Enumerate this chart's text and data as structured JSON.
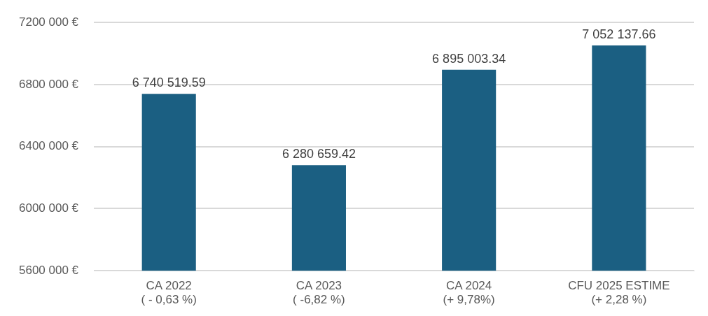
{
  "chart_data": {
    "type": "bar",
    "categories": [
      "CA 2022\n( - 0,63 %)",
      "CA 2023\n( -6,82 %)",
      "CA 2024\n(+ 9,78%)",
      "CFU 2025 ESTIME\n(+ 2,28 %)"
    ],
    "values": [
      6740519.59,
      6280659.42,
      6895003.34,
      7052137.66
    ],
    "value_labels": [
      "6 740 519.59",
      "6 280 659.42",
      "6 895 003.34",
      "7 052 137.66"
    ],
    "color": "#1b5f82",
    "ylim": [
      5600000,
      7200000
    ],
    "yticks": [
      {
        "value": 5600000,
        "label": "5600 000 €"
      },
      {
        "value": 6000000,
        "label": "6000 000 €"
      },
      {
        "value": 6400000,
        "label": "6400 000 €"
      },
      {
        "value": 6800000,
        "label": "6800 000 €"
      },
      {
        "value": 7200000,
        "label": "7200 000 €"
      }
    ],
    "grid": "y",
    "legend": false
  }
}
